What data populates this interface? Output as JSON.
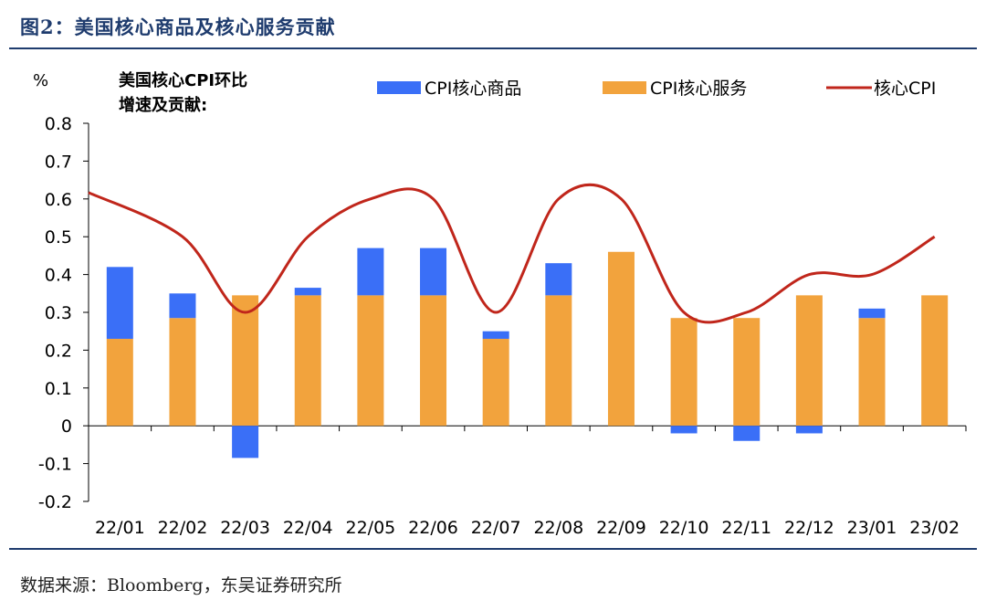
{
  "figure_title": "图2：美国核心商品及核心服务贡献",
  "source": "数据来源：Bloomberg，东吴证券研究所",
  "colors": {
    "goods": "#3a6ff7",
    "services": "#f2a33d",
    "core": "#c0261b",
    "title": "#1f3c6e"
  },
  "chart_data": {
    "type": "bar",
    "unit_label": "%",
    "annotation": [
      "美国核心CPI环比",
      "增速及贡献:"
    ],
    "categories": [
      "22/01",
      "22/02",
      "22/03",
      "22/04",
      "22/05",
      "22/06",
      "22/07",
      "22/08",
      "22/09",
      "22/10",
      "22/11",
      "22/12",
      "23/01",
      "23/02"
    ],
    "ylim": [
      -0.2,
      0.8
    ],
    "yticks": [
      "-0.2",
      "-0.1",
      "0",
      "0.1",
      "0.2",
      "0.3",
      "0.4",
      "0.5",
      "0.6",
      "0.7",
      "0.8"
    ],
    "stacked": true,
    "series": [
      {
        "name": "CPI核心商品",
        "kind": "bar",
        "values": [
          0.19,
          0.065,
          -0.085,
          0.02,
          0.125,
          0.125,
          0.02,
          0.085,
          0.0,
          -0.02,
          -0.04,
          -0.02,
          0.025,
          0.0
        ]
      },
      {
        "name": "CPI核心服务",
        "kind": "bar",
        "values": [
          0.23,
          0.285,
          0.345,
          0.345,
          0.345,
          0.345,
          0.23,
          0.345,
          0.46,
          0.285,
          0.285,
          0.345,
          0.285,
          0.345
        ]
      },
      {
        "name": "核心CPI",
        "kind": "line",
        "values": [
          0.6,
          0.5,
          0.3,
          0.5,
          0.6,
          0.6,
          0.3,
          0.6,
          0.6,
          0.3,
          0.3,
          0.4,
          0.4,
          0.5
        ]
      }
    ],
    "legend_position": "top"
  }
}
